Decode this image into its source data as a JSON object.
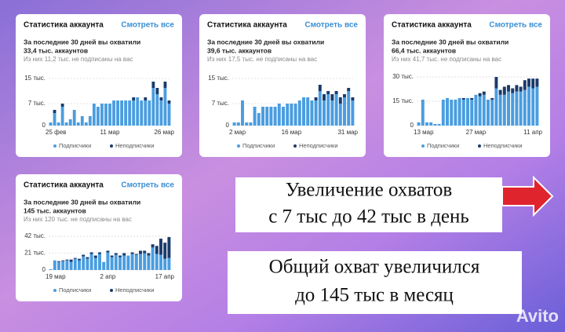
{
  "chart_data": [
    {
      "type": "bar",
      "stacked": true,
      "title": "Статистика аккаунта",
      "link": "Смотреть все",
      "subtitle": "За последние 30 дней вы охватили",
      "total": "33,4 тыс. аккаунтов",
      "note": "Из них 11,2 тыс. не подписаны на вас",
      "categories": [
        "25 фев",
        null,
        null,
        null,
        null,
        null,
        null,
        null,
        null,
        null,
        null,
        null,
        null,
        null,
        null,
        "11 мар",
        null,
        null,
        null,
        null,
        null,
        null,
        null,
        null,
        null,
        null,
        null,
        null,
        null,
        null,
        "26 мар"
      ],
      "series": [
        {
          "name": "Подписчики",
          "color": "#4a9de0",
          "values": [
            1,
            4,
            1,
            6,
            1,
            2,
            5,
            1,
            3,
            1,
            3,
            7,
            6,
            7,
            7,
            7,
            8,
            8,
            8,
            8,
            8,
            8,
            9,
            8,
            8,
            8,
            12,
            10,
            8,
            12,
            7
          ]
        },
        {
          "name": "Неподписчики",
          "color": "#1b3a6b",
          "values": [
            0,
            1,
            0,
            1,
            0,
            0,
            0,
            0,
            0,
            0,
            0,
            0,
            0,
            0,
            0,
            0,
            0,
            0,
            0,
            0,
            0,
            1,
            0,
            0,
            1,
            0,
            2,
            2,
            1,
            2,
            1
          ]
        }
      ],
      "ylim": [
        0,
        16
      ],
      "yticks": [
        0,
        {
          "value": 7,
          "label": "7 тыс."
        },
        {
          "value": 15,
          "label": "15 тыс."
        }
      ]
    },
    {
      "type": "bar",
      "stacked": true,
      "title": "Статистика аккаунта",
      "link": "Смотреть все",
      "subtitle": "За последние 30 дней вы охватили",
      "total": "39,6 тыс. аккаунтов",
      "note": "Из них 17,5 тыс. не подписаны на вас",
      "categories": [
        "2 мар",
        null,
        null,
        null,
        null,
        null,
        null,
        null,
        null,
        null,
        null,
        null,
        null,
        null,
        "16 мар",
        null,
        null,
        null,
        null,
        null,
        null,
        null,
        null,
        null,
        null,
        null,
        null,
        null,
        null,
        "31 мар"
      ],
      "series": [
        {
          "name": "Подписчики",
          "color": "#4a9de0",
          "values": [
            1,
            1,
            8,
            1,
            1,
            6,
            4,
            6,
            6,
            6,
            6,
            7,
            6,
            7,
            7,
            7,
            8,
            9,
            9,
            8,
            8,
            11,
            8,
            10,
            8,
            10,
            7,
            9,
            11,
            8
          ]
        },
        {
          "name": "Неподписчики",
          "color": "#1b3a6b",
          "values": [
            0,
            0,
            0,
            0,
            0,
            0,
            0,
            0,
            0,
            0,
            0,
            0,
            0,
            0,
            0,
            0,
            0,
            0,
            0,
            0,
            1,
            2,
            2,
            1,
            2,
            1,
            2,
            1,
            1,
            1
          ]
        }
      ],
      "ylim": [
        0,
        16
      ],
      "yticks": [
        0,
        {
          "value": 7,
          "label": "7 тыс."
        },
        {
          "value": 15,
          "label": "15 тыс."
        }
      ]
    },
    {
      "type": "bar",
      "stacked": true,
      "title": "Статистика аккаунта",
      "link": "Смотреть все",
      "subtitle": "За последние 30 дней вы охватили",
      "total": "66,4 тыс. аккаунтов",
      "note": "Из них 41,7 тыс. не подписаны на вас",
      "categories": [
        "13 мар",
        null,
        null,
        null,
        null,
        null,
        null,
        null,
        null,
        null,
        null,
        null,
        null,
        null,
        "27 мар",
        null,
        null,
        null,
        null,
        null,
        null,
        null,
        null,
        null,
        null,
        null,
        null,
        null,
        null,
        "11 апр"
      ],
      "series": [
        {
          "name": "Подписчики",
          "color": "#4a9de0",
          "values": [
            2,
            16,
            2,
            2,
            1,
            1,
            16,
            17,
            16,
            16,
            17,
            16,
            17,
            16,
            19,
            18,
            19,
            16,
            16,
            23,
            19,
            19,
            21,
            20,
            21,
            21,
            22,
            24,
            23,
            24
          ]
        },
        {
          "name": "Неподписчики",
          "color": "#1b3a6b",
          "values": [
            0,
            0,
            0,
            0,
            0,
            0,
            0,
            0,
            0,
            0,
            0,
            1,
            0,
            1,
            0,
            2,
            2,
            0,
            1,
            7,
            3,
            5,
            4,
            3,
            4,
            3,
            6,
            5,
            6,
            5
          ]
        }
      ],
      "ylim": [
        0,
        31
      ],
      "yticks": [
        0,
        {
          "value": 15,
          "label": "15 тыс."
        },
        {
          "value": 30,
          "label": "30 тыс."
        }
      ]
    },
    {
      "type": "bar",
      "stacked": true,
      "title": "Статистика аккаунта",
      "link": "Смотреть все",
      "subtitle": "За последние 30 дней вы охватили",
      "total": "145 тыс. аккаунтов",
      "note": "Из них 120 тыс. не подписаны на вас",
      "categories": [
        "19 мар",
        null,
        null,
        null,
        null,
        null,
        null,
        null,
        null,
        null,
        null,
        null,
        null,
        null,
        "2 апр",
        null,
        null,
        null,
        null,
        null,
        null,
        null,
        null,
        null,
        null,
        null,
        null,
        null,
        null,
        "17 апр"
      ],
      "series": [
        {
          "name": "Подписчики",
          "color": "#4a9de0",
          "values": [
            1,
            12,
            10,
            11,
            12,
            10,
            14,
            12,
            17,
            14,
            20,
            15,
            20,
            10,
            22,
            16,
            19,
            16,
            18,
            18,
            20,
            19,
            20,
            21,
            18,
            28,
            20,
            19,
            14,
            15
          ]
        },
        {
          "name": "Неподписчики",
          "color": "#1b3a6b",
          "values": [
            0,
            0,
            1,
            1,
            1,
            3,
            1,
            2,
            2,
            2,
            2,
            3,
            2,
            0,
            2,
            2,
            2,
            2,
            3,
            0,
            2,
            1,
            4,
            3,
            3,
            4,
            10,
            20,
            20,
            26
          ]
        }
      ],
      "ylim": [
        0,
        43
      ],
      "yticks": [
        0,
        {
          "value": 21,
          "label": "21 тыс."
        },
        {
          "value": 42,
          "label": "42 тыс."
        }
      ]
    }
  ],
  "captions": {
    "growth_line1": "Увеличение охватов",
    "growth_line2": "с 7 тыс до 42 тыс в день",
    "total_line1": "Общий охват увеличился",
    "total_line2": "до 145 тыс в месяц"
  },
  "watermark": "Avito"
}
